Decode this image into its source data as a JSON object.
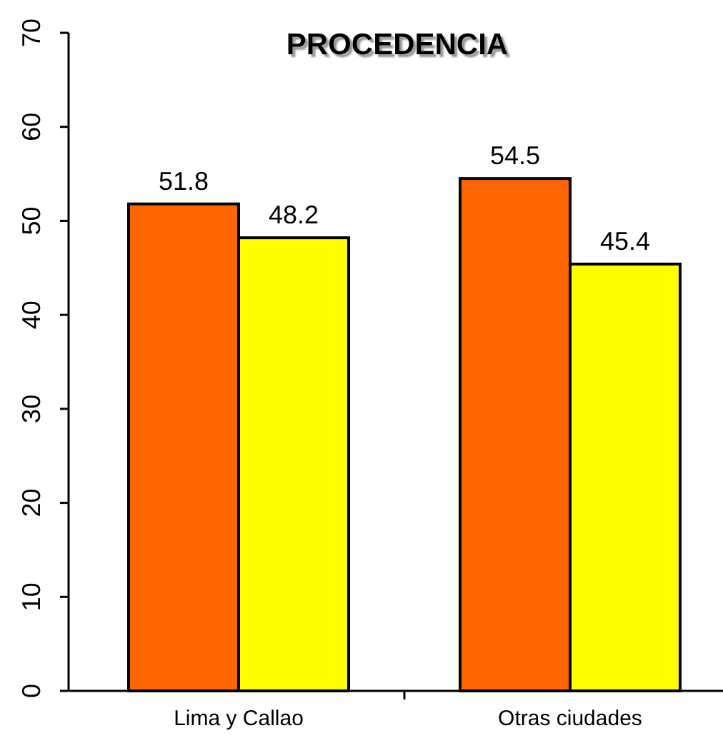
{
  "chart_data": {
    "type": "bar",
    "title": "PROCEDENCIA",
    "categories": [
      "Lima y Callao",
      "Otras ciudades"
    ],
    "series": [
      {
        "color": "#ff6600",
        "values": [
          51.8,
          54.5
        ]
      },
      {
        "color": "#ffff00",
        "values": [
          48.2,
          45.4
        ]
      }
    ],
    "ylim": [
      0,
      70
    ],
    "yticks": [
      0,
      10,
      20,
      30,
      40,
      50,
      60,
      70
    ],
    "grid": false,
    "data_labels": true
  }
}
